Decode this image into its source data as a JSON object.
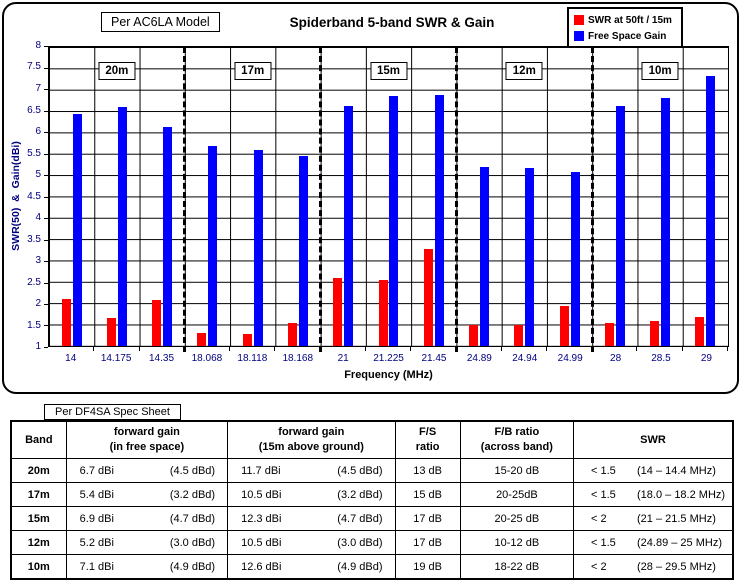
{
  "chart": {
    "model_label": "Per AC6LA Model"
  },
  "chart_data": {
    "type": "bar",
    "title": "Spiderband 5-band SWR & Gain",
    "xlabel": "Frequency (MHz)",
    "ylabel": "SWR(50)  &  Gain(dBi)",
    "ylim": [
      1,
      8
    ],
    "yticks": [
      8,
      7.5,
      7,
      6.5,
      6,
      5.5,
      5,
      4.5,
      4,
      3.5,
      3,
      2.5,
      2,
      1.5,
      1
    ],
    "grid": true,
    "legend_position": "top-right",
    "categories": [
      "14",
      "14.175",
      "14.35",
      "18.068",
      "18.118",
      "18.168",
      "21",
      "21.225",
      "21.45",
      "24.89",
      "24.94",
      "24.99",
      "28",
      "28.5",
      "29"
    ],
    "series": [
      {
        "name": "SWR at 50ft / 15m",
        "color": "#FF0000",
        "values": [
          2.1,
          1.65,
          2.08,
          1.3,
          1.28,
          1.53,
          2.6,
          2.55,
          3.27,
          1.5,
          1.5,
          1.93,
          1.55,
          1.58,
          1.67
        ]
      },
      {
        "name": "Free Space Gain",
        "color": "#0000FF",
        "values": [
          6.43,
          6.6,
          6.12,
          5.68,
          5.58,
          5.45,
          6.62,
          6.85,
          6.87,
          5.2,
          5.16,
          5.08,
          6.62,
          6.8,
          7.32
        ]
      }
    ],
    "bands": [
      {
        "label": "20m"
      },
      {
        "label": "17m"
      },
      {
        "label": "15m"
      },
      {
        "label": "12m"
      },
      {
        "label": "10m"
      }
    ]
  },
  "spec_table": {
    "source_label": "Per DF4SA Spec Sheet",
    "headers": {
      "band": "Band",
      "fg_free_1": "forward gain",
      "fg_free_2": "(in free space)",
      "fg_15m_1": "forward gain",
      "fg_15m_2": "(15m above ground)",
      "fs_1": "F/S",
      "fs_2": "ratio",
      "fb_1": "F/B ratio",
      "fb_2": "(across band)",
      "swr": "SWR"
    },
    "rows": [
      {
        "band": "20m",
        "fg_free_dbi": "6.7 dBi",
        "fg_free_dbd": "(4.5 dBd)",
        "fg_15m_dbi": "11.7 dBi",
        "fg_15m_dbd": "(4.5 dBd)",
        "fs_ratio": "13 dB",
        "fb_ratio": "15-20 dB",
        "swr_limit": "< 1.5",
        "swr_range": "(14 – 14.4 MHz)"
      },
      {
        "band": "17m",
        "fg_free_dbi": "5.4 dBi",
        "fg_free_dbd": "(3.2 dBd)",
        "fg_15m_dbi": "10.5 dBi",
        "fg_15m_dbd": "(3.2 dBd)",
        "fs_ratio": "15 dB",
        "fb_ratio": "20-25dB",
        "swr_limit": "< 1.5",
        "swr_range": "(18.0 – 18.2 MHz)"
      },
      {
        "band": "15m",
        "fg_free_dbi": "6.9 dBi",
        "fg_free_dbd": "(4.7 dBd)",
        "fg_15m_dbi": "12.3 dBi",
        "fg_15m_dbd": "(4.7 dBd)",
        "fs_ratio": "17 dB",
        "fb_ratio": "20-25 dB",
        "swr_limit": "< 2",
        "swr_range": "(21 – 21.5 MHz)"
      },
      {
        "band": "12m",
        "fg_free_dbi": "5.2 dBi",
        "fg_free_dbd": "(3.0 dBd)",
        "fg_15m_dbi": "10.5 dBi",
        "fg_15m_dbd": "(3.0 dBd)",
        "fs_ratio": "17 dB",
        "fb_ratio": "10-12 dB",
        "swr_limit": "< 1.5",
        "swr_range": "(24.89 – 25 MHz)"
      },
      {
        "band": "10m",
        "fg_free_dbi": "7.1 dBi",
        "fg_free_dbd": "(4.9 dBd)",
        "fg_15m_dbi": "12.6 dBi",
        "fg_15m_dbd": "(4.9 dBd)",
        "fs_ratio": "19 dB",
        "fb_ratio": "18-22 dB",
        "swr_limit": "< 2",
        "swr_range": "(28 – 29.5 MHz)"
      }
    ]
  }
}
